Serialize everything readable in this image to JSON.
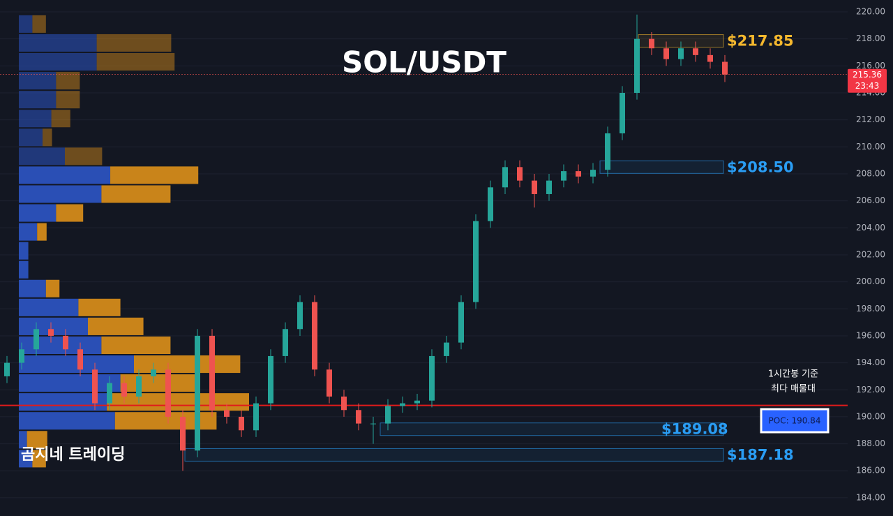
{
  "chart_data": {
    "type": "candlestick",
    "title": "SOL/USDT",
    "watermark": "곰지네 트레이딩",
    "note_lines": [
      "1시간봉 기준",
      "최다 매물대"
    ],
    "poc": {
      "value": 190.84,
      "label": "POC: 190.84"
    },
    "last_price": {
      "value": 215.36,
      "label": "215.36",
      "countdown": "23:43"
    },
    "ylim": [
      182.65,
      220.88
    ],
    "yticks": [
      {
        "value": 184,
        "label": "184.00"
      },
      {
        "value": 186,
        "label": "186.00"
      },
      {
        "value": 188,
        "label": "188.00"
      },
      {
        "value": 190,
        "label": "190.00"
      },
      {
        "value": 192,
        "label": "192.00"
      },
      {
        "value": 194,
        "label": "194.00"
      },
      {
        "value": 196,
        "label": "196.00"
      },
      {
        "value": 198,
        "label": "198.00"
      },
      {
        "value": 200,
        "label": "200.00"
      },
      {
        "value": 202,
        "label": "202.00"
      },
      {
        "value": 204,
        "label": "204.00"
      },
      {
        "value": 206,
        "label": "206.00"
      },
      {
        "value": 208,
        "label": "208.00"
      },
      {
        "value": 210,
        "label": "210.00"
      },
      {
        "value": 212,
        "label": "212.00"
      },
      {
        "value": 214,
        "label": "214.00"
      },
      {
        "value": 216,
        "label": "216.00"
      },
      {
        "value": 218,
        "label": "218.00"
      },
      {
        "value": 220,
        "label": "220.00"
      }
    ],
    "grid": true,
    "up_color": "#26a69a",
    "down_color": "#ef5350",
    "open": [
      193,
      194,
      195,
      196.5,
      196,
      195,
      193.5,
      191,
      192.5,
      191.5,
      193,
      193.5,
      190,
      187.5,
      196,
      190.5,
      190,
      189,
      191,
      194.5,
      196.5,
      198.5,
      193.5,
      191.5,
      190.5,
      189.5,
      189.5,
      190.8,
      191,
      191.2,
      194.5,
      195.5,
      198.5,
      204.5,
      207,
      208.5,
      207.5,
      206.5,
      207.5,
      208.2,
      207.8,
      208.3,
      211,
      214,
      218,
      217.3,
      216.5,
      217.3,
      216.8,
      216.3
    ],
    "high": [
      194.5,
      195.5,
      197,
      197,
      196.5,
      195.5,
      194,
      193,
      193,
      193.5,
      194,
      194,
      190.5,
      196.5,
      196.5,
      191,
      190.5,
      191.5,
      195,
      197,
      199,
      199,
      194,
      192,
      191,
      190,
      191.3,
      191.5,
      191.7,
      195,
      196,
      199,
      205,
      207.5,
      209,
      209,
      208,
      208,
      208.7,
      208.7,
      208.8,
      211.5,
      214.5,
      219.8,
      218.5,
      217.8,
      217.8,
      217.8,
      217.3,
      216.8
    ],
    "low": [
      192.5,
      193.5,
      194.5,
      195.5,
      194.5,
      193,
      190.5,
      190.5,
      191,
      191,
      192.5,
      189.5,
      186,
      187,
      190,
      189.5,
      188.5,
      188.5,
      190.5,
      194,
      196,
      193,
      191,
      190,
      189,
      188,
      189,
      190.3,
      190.5,
      190.7,
      194,
      195,
      198,
      204,
      206.5,
      207,
      205.5,
      206,
      207,
      207.3,
      207.3,
      207.8,
      210.5,
      213.5,
      216.8,
      216,
      216,
      216.3,
      215.8,
      214.8
    ],
    "close": [
      194,
      195,
      196.5,
      196,
      195,
      193.5,
      191,
      192.5,
      191.5,
      193,
      193.5,
      190,
      187.5,
      196,
      190.5,
      190,
      189,
      191,
      194.5,
      196.5,
      198.5,
      193.5,
      191.5,
      190.5,
      189.5,
      189.5,
      190.8,
      191,
      191.2,
      194.5,
      195.5,
      198.5,
      204.5,
      207,
      208.5,
      207.5,
      206.5,
      207.5,
      208.2,
      207.8,
      208.3,
      211,
      214,
      218,
      217.3,
      216.5,
      217.3,
      216.8,
      216.3,
      215.36
    ],
    "levels": [
      {
        "value": 217.85,
        "label": "$217.85",
        "color": "#f5b82e"
      },
      {
        "value": 208.5,
        "label": "$208.50",
        "color": "#2a9df4"
      },
      {
        "value": 189.08,
        "label": "$189.08",
        "color": "#2a9df4"
      },
      {
        "value": 187.18,
        "label": "$187.18",
        "color": "#2a9df4"
      }
    ],
    "profile": {
      "bins": [
        219.8,
        218.4,
        217,
        215.6,
        214.2,
        212.8,
        211.4,
        210,
        208.6,
        207.2,
        205.8,
        204.4,
        203,
        201.6,
        200.2,
        198.8,
        197.4,
        196,
        194.6,
        193.2,
        191.8,
        190.4,
        189,
        187.6,
        186.2
      ],
      "buy": [
        20,
        115,
        115,
        55,
        55,
        48,
        35,
        68,
        135,
        122,
        55,
        27,
        14,
        14,
        40,
        88,
        102,
        122,
        170,
        150,
        130,
        142,
        12,
        20
      ],
      "sell": [
        20,
        110,
        115,
        35,
        35,
        28,
        14,
        55,
        130,
        102,
        40,
        14,
        0,
        0,
        20,
        62,
        82,
        102,
        157,
        115,
        210,
        150,
        30,
        20
      ],
      "buy_color": "#2a4fb5",
      "sell_color": "#c9841a"
    }
  }
}
